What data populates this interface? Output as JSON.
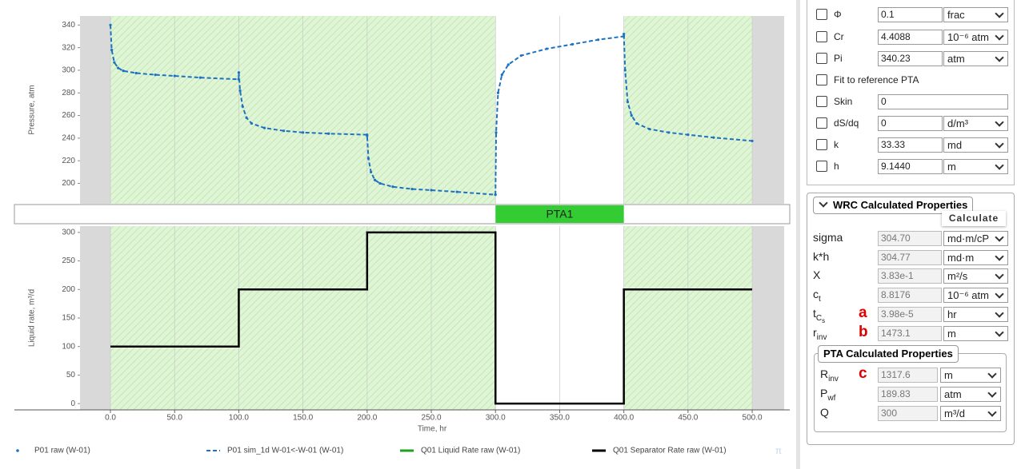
{
  "pressure_chart": {
    "type": "line",
    "y_label": "Pressure, atm",
    "xlim": [
      -23.7,
      524.9
    ],
    "ylim": [
      182,
      348
    ],
    "xticks": [
      0,
      50,
      100,
      150,
      200,
      250,
      300,
      350,
      400,
      450,
      500
    ],
    "yticks": [
      200,
      220,
      240,
      260,
      280,
      300,
      320,
      340
    ],
    "shaded_regions": [
      [
        0,
        300
      ],
      [
        400,
        500
      ]
    ],
    "inactive_regions": [
      [
        -23.7,
        0
      ],
      [
        500,
        524.9
      ]
    ],
    "x": [
      0,
      1,
      3,
      6,
      10,
      20,
      35,
      50,
      70,
      99.9,
      100,
      101,
      103,
      106,
      110,
      120,
      135,
      150,
      170,
      199.9,
      200,
      201,
      203,
      206,
      210,
      220,
      235,
      250,
      270,
      299.9,
      300,
      300.5,
      302,
      305,
      310,
      320,
      340,
      360,
      380,
      399.9,
      400,
      401,
      403,
      406,
      410,
      420,
      435,
      450,
      470,
      500
    ],
    "series": [
      {
        "name": "P01 raw (W-01)",
        "color": "#1f72c0",
        "style": "dots",
        "values": [
          340,
          318,
          307,
          302,
          299.5,
          297.5,
          296,
          295,
          293.5,
          292,
          298,
          282,
          268,
          258,
          253,
          249,
          246.5,
          245,
          244,
          243,
          242,
          222,
          210,
          203,
          200,
          197,
          195,
          194,
          192.5,
          190,
          190,
          245,
          280,
          296,
          305,
          313,
          319,
          323,
          327,
          330,
          332,
          300,
          272,
          260,
          253,
          248,
          245,
          243,
          240.5,
          237.5
        ]
      },
      {
        "name": "P01 sim_1d W-01<-W-01 (W-01)",
        "color": "#1f72c0",
        "style": "dashed",
        "values": [
          340,
          318,
          307,
          302,
          299.5,
          297.5,
          296,
          295,
          293.5,
          292,
          298,
          282,
          268,
          258,
          253,
          249,
          246.5,
          245,
          244,
          243,
          242,
          222,
          210,
          203,
          200,
          197,
          195,
          194,
          192.5,
          190,
          190,
          245,
          280,
          296,
          305,
          313,
          319,
          323,
          327,
          330,
          332,
          300,
          272,
          260,
          253,
          248,
          245,
          243,
          240.5,
          237.5
        ]
      }
    ]
  },
  "pta_bar": {
    "label": "PTA1",
    "start": 300,
    "end": 400,
    "color": "#33cc33"
  },
  "rate_chart": {
    "type": "line",
    "y_label": "Liquid rate, m³/d",
    "x_label": "Time, hr",
    "xlim": [
      -23.7,
      524.9
    ],
    "ylim": [
      -11,
      311
    ],
    "xticks": [
      {
        "value": 0,
        "label": "0.0"
      },
      {
        "value": 50,
        "label": "50.0"
      },
      {
        "value": 100,
        "label": "100.0"
      },
      {
        "value": 150,
        "label": "150.0"
      },
      {
        "value": 200,
        "label": "200.0"
      },
      {
        "value": 250,
        "label": "250.0"
      },
      {
        "value": 300,
        "label": "300.0"
      },
      {
        "value": 350,
        "label": "350.0"
      },
      {
        "value": 400,
        "label": "400.0"
      },
      {
        "value": 450,
        "label": "450.0"
      },
      {
        "value": 500,
        "label": "500.0"
      }
    ],
    "yticks": [
      0,
      50,
      100,
      150,
      200,
      250,
      300
    ],
    "shaded_regions": [
      [
        0,
        300
      ],
      [
        400,
        500
      ]
    ],
    "inactive_regions": [
      [
        -23.7,
        0
      ],
      [
        500,
        524.9
      ]
    ],
    "x": [
      0,
      100,
      100,
      200,
      200,
      300,
      300,
      400,
      400,
      500
    ],
    "series": [
      {
        "name": "Q01 Separator Rate raw (W-01)",
        "color": "#000000",
        "style": "solid",
        "values": [
          100,
          100,
          200,
          200,
          300,
          300,
          0,
          0,
          200,
          200
        ]
      }
    ],
    "legend_only_series": [
      {
        "name": "Q01 Liquid Rate raw (W-01)",
        "color": "#1fa01f",
        "style": "solid"
      }
    ]
  },
  "footer_symbol": "π",
  "parameters": [
    {
      "label": "Φ",
      "value": "0.1",
      "unit": "frac"
    },
    {
      "label": "Cr",
      "value": "4.4088",
      "unit": "10⁻⁶ atm"
    },
    {
      "label": "Pi",
      "value": "340.23",
      "unit": "atm"
    },
    {
      "label": "Fit to reference PTA"
    },
    {
      "label": "Skin",
      "value": "0"
    },
    {
      "label": "dS/dq",
      "value": "0",
      "unit": "d/m³"
    },
    {
      "label": "k",
      "value": "33.33",
      "unit": "md"
    },
    {
      "label": "h",
      "value": "9.1440",
      "unit": "m"
    }
  ],
  "wrc_section": {
    "title": "WRC Calculated Properties",
    "button": "Calculate",
    "rows": [
      {
        "label": "sigma",
        "value": "304.70",
        "unit": "md·m/cP"
      },
      {
        "label": "k*h",
        "value": "304.77",
        "unit": "md·m"
      },
      {
        "label": "X",
        "value": "3.83e-1",
        "unit": "m²/s"
      },
      {
        "label": "c",
        "sub": "t",
        "value": "8.8176",
        "unit": "10⁻⁶ atm"
      },
      {
        "label": "t",
        "sub": "C",
        "subsub": "s",
        "marker": "a",
        "value": "3.98e-5",
        "unit": "hr"
      },
      {
        "label": "r",
        "sub": "inv",
        "marker": "b",
        "value": "1473.1",
        "unit": "m"
      }
    ]
  },
  "pta_section": {
    "title": "PTA Calculated Properties",
    "rows": [
      {
        "label": "R",
        "sub": "inv",
        "marker": "c",
        "value": "1317.6",
        "unit": "m"
      },
      {
        "label": "P",
        "sub": "wf",
        "value": "189.83",
        "unit": "atm"
      },
      {
        "label": "Q",
        "value": "300",
        "unit": "m³/d"
      }
    ]
  }
}
